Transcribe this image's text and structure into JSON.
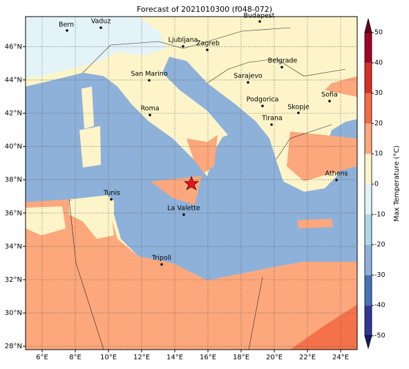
{
  "title": "Forecast of 2021010300 (f048-072)",
  "map": {
    "xlim": [
      5,
      25
    ],
    "ylim": [
      27.8,
      47.8
    ],
    "grid": true,
    "xticks": [
      {
        "value": 6,
        "label": "6°E"
      },
      {
        "value": 8,
        "label": "8°E"
      },
      {
        "value": 10,
        "label": "10°E"
      },
      {
        "value": 12,
        "label": "12°E"
      },
      {
        "value": 14,
        "label": "14°E"
      },
      {
        "value": 16,
        "label": "16°E"
      },
      {
        "value": 18,
        "label": "18°E"
      },
      {
        "value": 20,
        "label": "20°E"
      },
      {
        "value": 22,
        "label": "22°E"
      },
      {
        "value": 24,
        "label": "24°E"
      }
    ],
    "yticks": [
      {
        "value": 28,
        "label": "28°N"
      },
      {
        "value": 30,
        "label": "30°N"
      },
      {
        "value": 32,
        "label": "32°N"
      },
      {
        "value": 34,
        "label": "34°N"
      },
      {
        "value": 36,
        "label": "36°N"
      },
      {
        "value": 38,
        "label": "38°N"
      },
      {
        "value": 40,
        "label": "40°N"
      },
      {
        "value": 42,
        "label": "42°N"
      },
      {
        "value": 44,
        "label": "44°N"
      },
      {
        "value": 46,
        "label": "46°N"
      }
    ],
    "cities": [
      "Bern",
      "Vaduz",
      "Budapest",
      "Ljubljana",
      "Zagreb",
      "Belgrade",
      "San Marino",
      "Sarajevo",
      "Sofia",
      "Podgorica",
      "Skopje",
      "Roma",
      "Tirana",
      "Athens",
      "Tunis",
      "La Valette",
      "Tripoli"
    ]
  },
  "colorbar": {
    "label": "Max Temperature (°C)",
    "lim": [
      -50,
      50
    ],
    "ticks": [
      -50,
      -40,
      -30,
      -20,
      -10,
      0,
      10,
      20,
      30,
      40,
      50
    ],
    "colors": [
      "#313695",
      "#4575b4",
      "#8eb1d9",
      "#abd9e9",
      "#e0f3f8",
      "#fdf5c9",
      "#fca77c",
      "#f46d43",
      "#d73027",
      "#a50026"
    ],
    "under": "#1b1b6b",
    "over": "#6b0020"
  }
}
